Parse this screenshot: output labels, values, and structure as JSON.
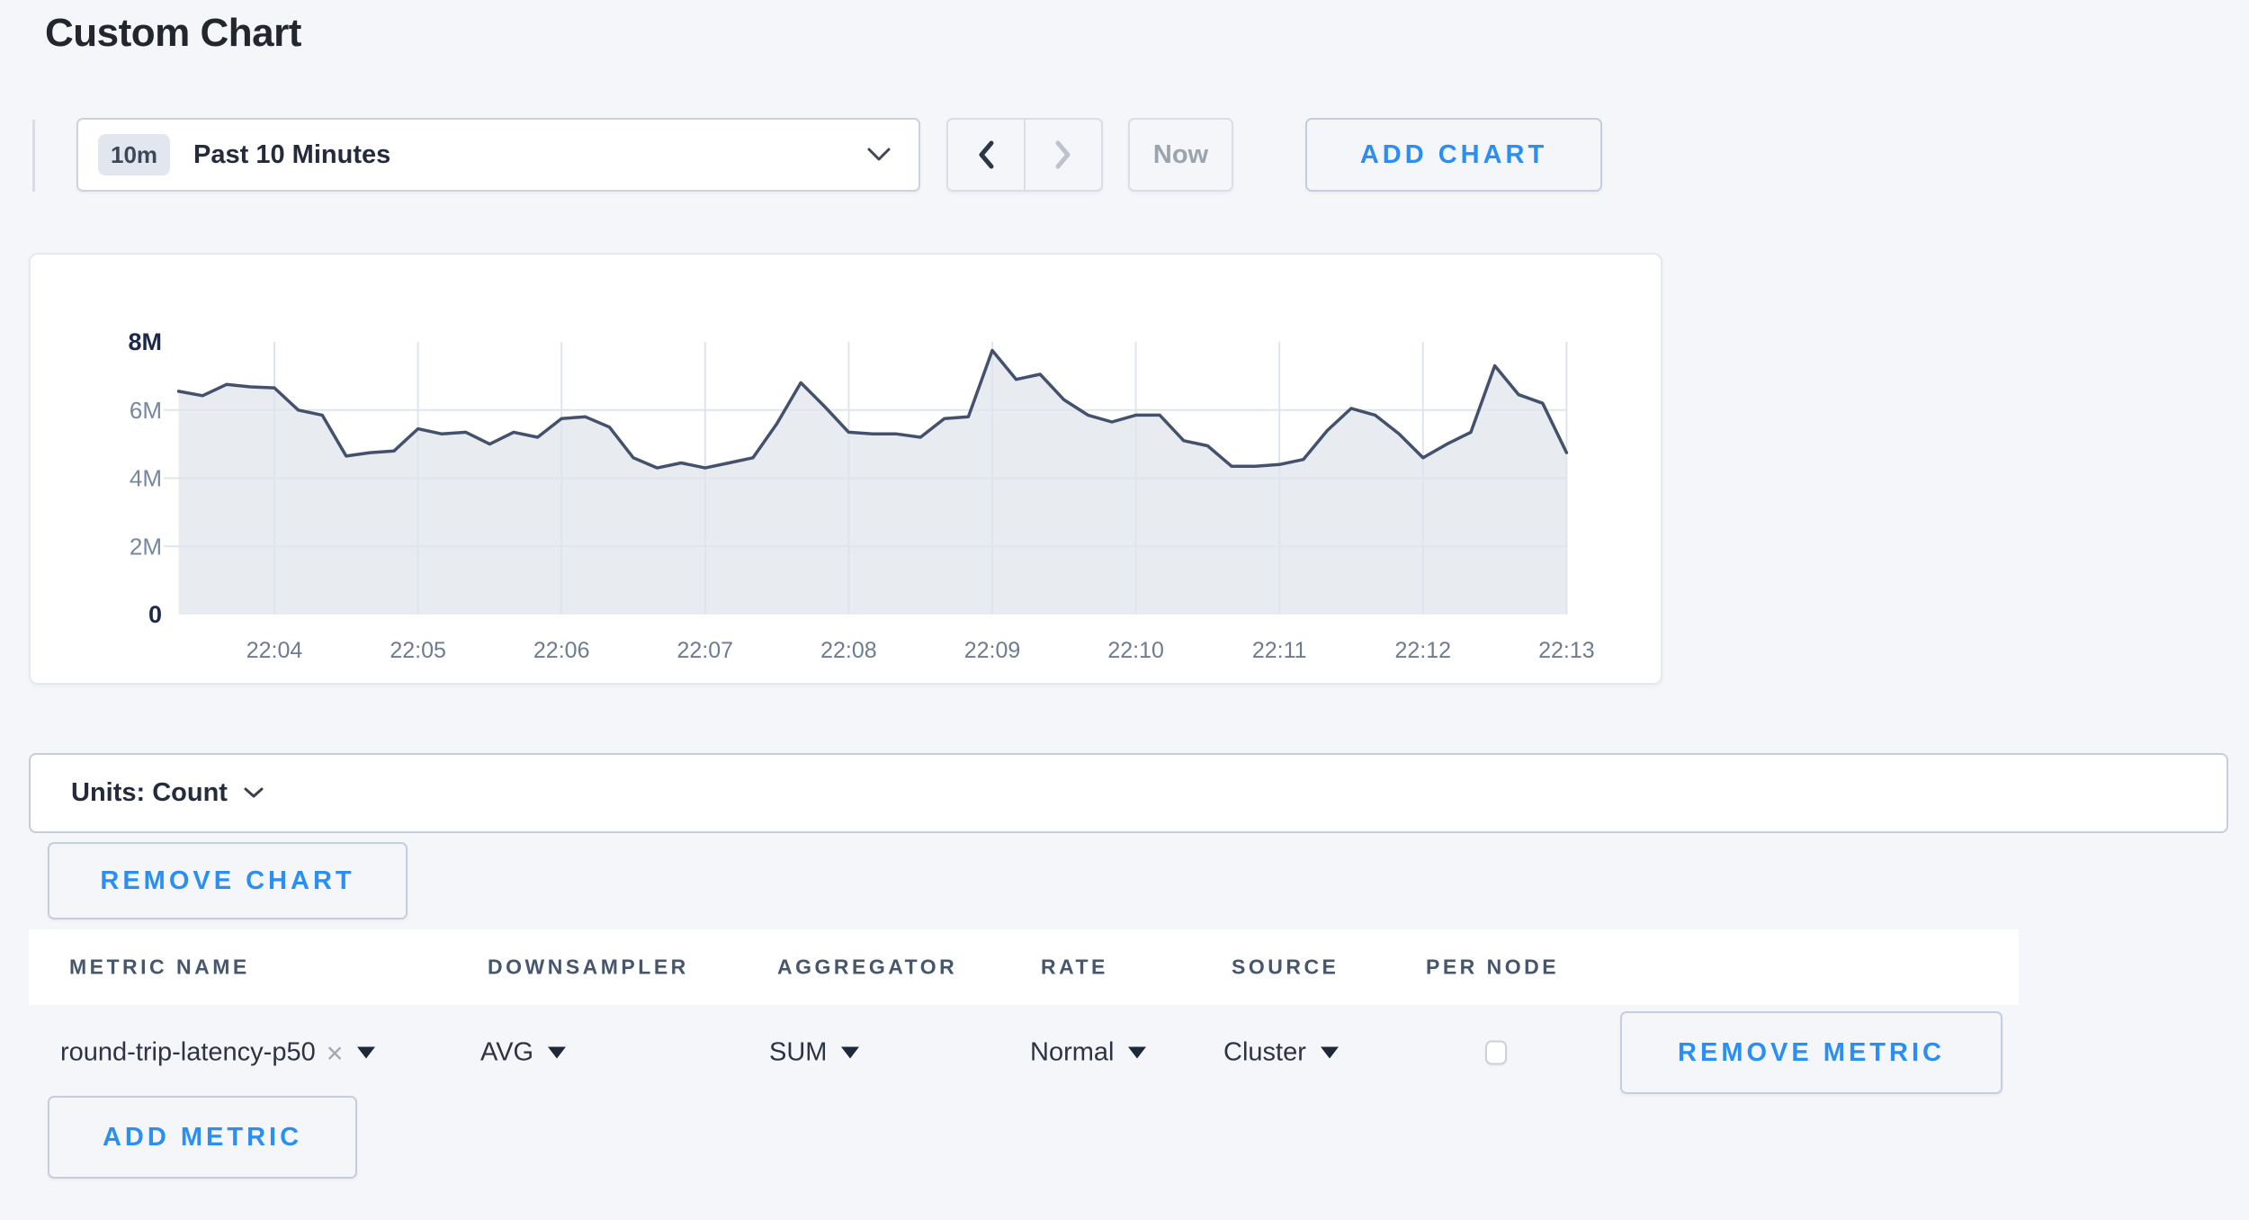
{
  "page": {
    "title": "Custom Chart"
  },
  "toolbar": {
    "time_window_badge": "10m",
    "time_window_label": "Past 10 Minutes",
    "now_label": "Now",
    "add_chart_label": "ADD CHART"
  },
  "units_bar": {
    "label": "Units: Count"
  },
  "chart_section": {
    "remove_chart_label": "REMOVE CHART"
  },
  "table": {
    "columns": [
      "METRIC NAME",
      "DOWNSAMPLER",
      "AGGREGATOR",
      "RATE",
      "SOURCE",
      "PER NODE"
    ],
    "row": {
      "metric_name": "round-trip-latency-p50",
      "remove_token": "×",
      "downsampler": "AVG",
      "aggregator": "SUM",
      "rate": "Normal",
      "source": "Cluster",
      "per_node_checked": false,
      "remove_metric_label": "REMOVE METRIC"
    },
    "add_metric_label": "ADD METRIC"
  },
  "colors": {
    "accent_blue": "#2b8ef2",
    "line": "#44516c",
    "fill": "#e8ebf0",
    "grid": "#dfe5ed"
  },
  "chart_data": {
    "type": "area",
    "title": "",
    "xlabel": "",
    "ylabel": "",
    "x_start": "22:03:20",
    "x_interval_seconds": 10,
    "x_tick_labels": [
      "22:04",
      "22:05",
      "22:06",
      "22:07",
      "22:08",
      "22:09",
      "22:10",
      "22:11",
      "22:12",
      "22:13"
    ],
    "y_tick_labels": [
      "0",
      "2M",
      "4M",
      "6M",
      "8M"
    ],
    "y_tick_values_millions": [
      0,
      2,
      4,
      6,
      8
    ],
    "ylim": [
      0,
      8000000
    ],
    "grid": true,
    "legend": "none",
    "series": [
      {
        "name": "round-trip-latency-p50",
        "values_millions": [
          6.55,
          6.42,
          6.75,
          6.68,
          6.65,
          6.0,
          5.85,
          4.65,
          4.75,
          4.8,
          5.45,
          5.3,
          5.35,
          5.0,
          5.35,
          5.2,
          5.75,
          5.8,
          5.5,
          4.6,
          4.3,
          4.45,
          4.3,
          4.45,
          4.6,
          5.6,
          6.8,
          6.1,
          5.35,
          5.3,
          5.3,
          5.2,
          5.75,
          5.8,
          7.75,
          6.9,
          7.05,
          6.3,
          5.85,
          5.65,
          5.85,
          5.85,
          5.1,
          4.95,
          4.35,
          4.35,
          4.4,
          4.55,
          5.4,
          6.05,
          5.85,
          5.3,
          4.6,
          5.0,
          5.35,
          7.3,
          6.45,
          6.2,
          4.75
        ]
      }
    ]
  }
}
